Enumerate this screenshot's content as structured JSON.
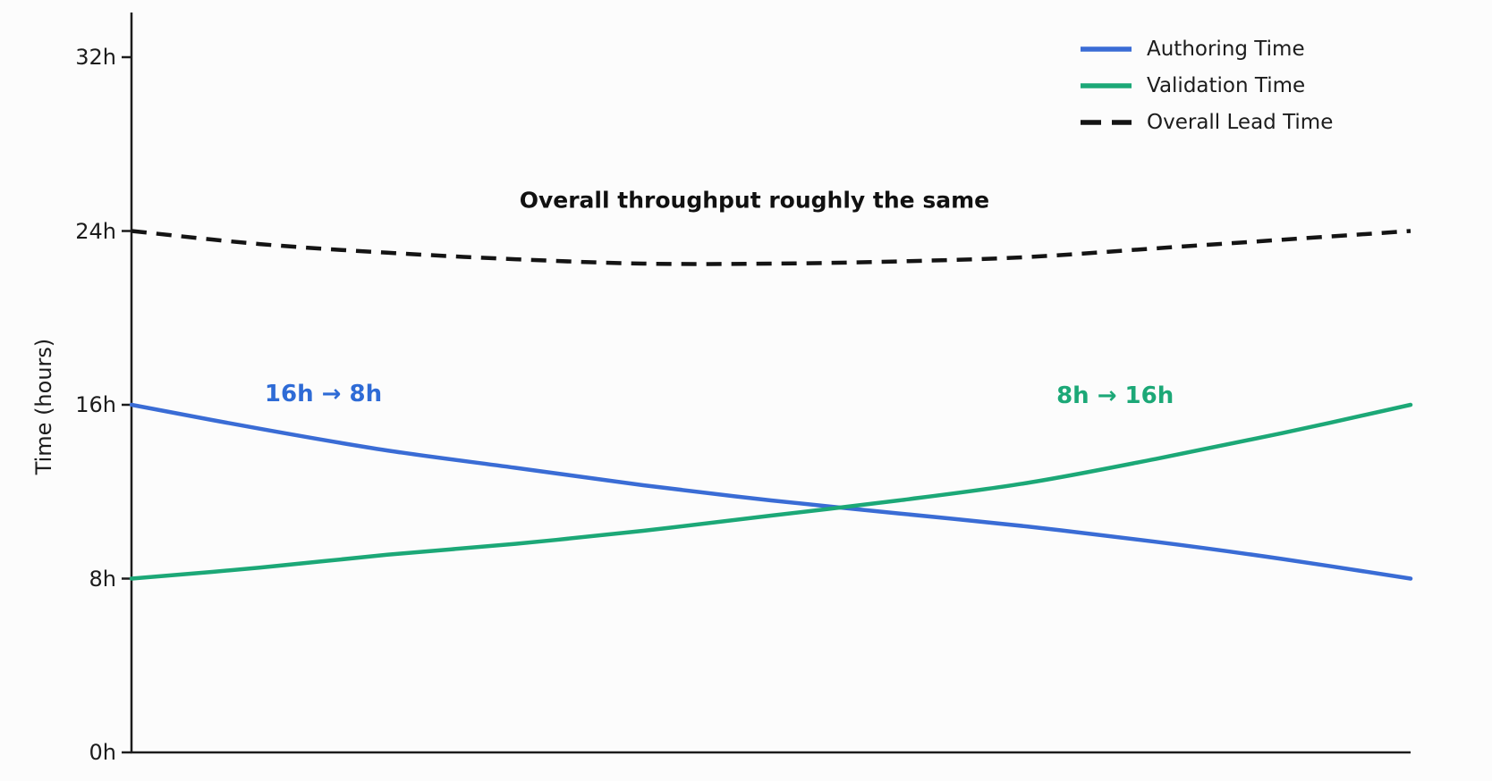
{
  "chart_data": {
    "type": "line",
    "title": "",
    "xlabel": "",
    "ylabel": "Time (hours)",
    "x": [
      0,
      1,
      2,
      3,
      4,
      5,
      6,
      7,
      8,
      9,
      10
    ],
    "xlim": [
      0,
      10
    ],
    "ylim": [
      0,
      34
    ],
    "grid": false,
    "legend_position": "upper right",
    "yticks": [
      {
        "value": 0,
        "label": "0h"
      },
      {
        "value": 8,
        "label": "8h"
      },
      {
        "value": 16,
        "label": "16h"
      },
      {
        "value": 24,
        "label": "24h"
      },
      {
        "value": 32,
        "label": "32h"
      }
    ],
    "series": [
      {
        "name": "Authoring Time",
        "key": "authoring-time",
        "color": "#3a6cd5",
        "style": "solid",
        "values": [
          16.0,
          14.9,
          13.9,
          13.1,
          12.3,
          11.6,
          11.0,
          10.4,
          9.7,
          8.9,
          8.0
        ]
      },
      {
        "name": "Validation Time",
        "key": "validation-time",
        "color": "#1ca877",
        "style": "solid",
        "values": [
          8.0,
          8.5,
          9.1,
          9.6,
          10.2,
          10.9,
          11.6,
          12.4,
          13.5,
          14.7,
          16.0
        ]
      },
      {
        "name": "Overall Lead Time",
        "key": "overall-lead-time",
        "color": "#141414",
        "style": "dashed",
        "values": [
          24.0,
          23.4,
          23.0,
          22.7,
          22.5,
          22.5,
          22.6,
          22.8,
          23.2,
          23.6,
          24.0
        ]
      }
    ],
    "annotations": [
      {
        "key": "overall-note",
        "text": "Overall throughput roughly the same",
        "color": "#111111",
        "x": 4.87,
        "y": 25.4,
        "class": "note-main"
      },
      {
        "key": "authoring-note",
        "text": "16h → 8h",
        "color": "#2e6bd6",
        "x": 1.5,
        "y": 16.5,
        "class": "note-series"
      },
      {
        "key": "validation-note",
        "text": "8h → 16h",
        "color": "#1ca877",
        "x": 7.69,
        "y": 16.4,
        "class": "note-series"
      }
    ],
    "axis_color": "#1c1c1c"
  }
}
